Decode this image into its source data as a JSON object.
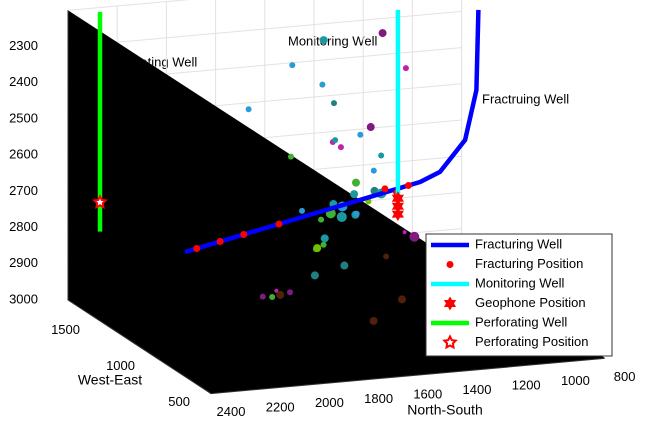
{
  "chart_data": {
    "type": "scatter3d",
    "annotations": [
      "Perforating Well",
      "Monitoring Well",
      "Fractruing Well"
    ],
    "xlabel": "North-South",
    "xlim": [
      800,
      2400
    ],
    "xticks": [
      800,
      1000,
      1200,
      1400,
      1600,
      1800,
      2000,
      2200,
      2400
    ],
    "ylabel": "West-East",
    "ylim": [
      400,
      1700
    ],
    "yticks": [
      500,
      1000,
      1500
    ],
    "zlim": [
      2200,
      3000
    ],
    "zticks": [
      2300,
      2400,
      2500,
      2600,
      2700,
      2800,
      2900,
      3000
    ],
    "z_reversed": true,
    "grid": true,
    "legend": "lower right",
    "events": {
      "x": [
        1500,
        1450,
        1600,
        1550,
        1400,
        1650,
        1350,
        1700,
        1520,
        1480,
        1580,
        1420,
        1620,
        1380,
        1560,
        1460,
        1540,
        1500,
        1300,
        1750,
        1900,
        2000,
        2100,
        1850,
        1950,
        1500,
        1450,
        1600,
        1400,
        1550,
        1650,
        1350,
        1480,
        1520,
        1700,
        1300,
        1250,
        1800,
        1560,
        1440,
        1600,
        1500,
        1380,
        1620,
        1470
      ],
      "y": [
        1100,
        1200,
        1000,
        1300,
        1150,
        1250,
        900,
        1100,
        1050,
        1350,
        1200,
        1000,
        950,
        1250,
        1150,
        1050,
        1300,
        1200,
        1100,
        900,
        800,
        700,
        600,
        1000,
        850,
        1400,
        1500,
        1450,
        900,
        1000,
        1350,
        1200,
        1100,
        1250,
        1000,
        1300,
        1200,
        1400,
        800,
        1000,
        1100,
        1300,
        1500,
        1200,
        1000
      ],
      "z": [
        2700,
        2720,
        2680,
        2750,
        2650,
        2710,
        2730,
        2690,
        2600,
        2550,
        2780,
        2800,
        2640,
        2700,
        2500,
        2450,
        2820,
        2860,
        2760,
        2740,
        2830,
        2800,
        2790,
        2880,
        2850,
        2400,
        2300,
        2350,
        2900,
        2620,
        2580,
        2670,
        2480,
        2420,
        2760,
        2250,
        2330,
        2450,
        2930,
        2520,
        2690,
        2710,
        2600,
        2880,
        2560
      ],
      "sizes": [
        4,
        3,
        5,
        3,
        4,
        3,
        5,
        2,
        4,
        3,
        4,
        3,
        5,
        3,
        3,
        4,
        3,
        4,
        2,
        3,
        3,
        2,
        3,
        4,
        3,
        3,
        4,
        3,
        4,
        4,
        3,
        5,
        3,
        3,
        4,
        4,
        3,
        3,
        4,
        3,
        5,
        4,
        3,
        4,
        3
      ],
      "colors": [
        "#1a9aa0",
        "#2a9ad8",
        "#1a9aa0",
        "#40b030",
        "#208080",
        "#2a9ad8",
        "#801a80",
        "#1a9aa0",
        "#40b030",
        "#c020b0",
        "#1a9aa0",
        "#50200a",
        "#2a9ad8",
        "#70c000",
        "#1a9aa0",
        "#801a80",
        "#40b030",
        "#208080",
        "#c020b0",
        "#1a9aa0",
        "#801a80",
        "#c020b0",
        "#801a80",
        "#50200a",
        "#40b030",
        "#2a9ad8",
        "#1a9aa0",
        "#2a9ad8",
        "#50200a",
        "#1a9aa0",
        "#40b030",
        "#1a9aa0",
        "#2a9ad8",
        "#208080",
        "#70c000",
        "#801a80",
        "#c020b0",
        "#2a9ad8",
        "#50200a",
        "#1a9aa0",
        "#40b030",
        "#1a9aa0",
        "#c020b0",
        "#208080",
        "#2a9ad8"
      ]
    },
    "series": [
      {
        "name": "Fracturing Well",
        "color": "#0000ff",
        "x": [
          2194,
          971,
          890,
          788,
          742,
          734
        ],
        "y": [
          1097,
          1695,
          1695,
          1695,
          1695,
          1695
        ],
        "z": [
          2760,
          2760,
          2737,
          2655,
          2520,
          2299
        ]
      },
      {
        "name": "Fracturing Position",
        "color": "#ff0000",
        "marker": "circle",
        "x": [
          2133,
          2011,
          1888,
          1705,
          1154,
          1093,
          1032
        ],
        "y": [
          1127,
          1187,
          1247,
          1336,
          1605,
          1635,
          1665
        ],
        "z": [
          2760,
          2760,
          2760,
          2760,
          2750,
          2770,
          2760
        ]
      },
      {
        "name": "Monitoring Well",
        "color": "#00ffff",
        "x": [
          1372,
          1372
        ],
        "y": [
          1000,
          1000
        ],
        "z": [
          2675,
          2122
        ]
      },
      {
        "name": "Geophone Position",
        "color": "#ff0000",
        "marker": "hexagram",
        "x": [
          1372,
          1372,
          1372
        ],
        "y": [
          1000,
          1000,
          1000
        ],
        "z": [
          2642,
          2664,
          2686
        ]
      },
      {
        "name": "Perforating Well",
        "color": "#00ff00",
        "x": [
          2270,
          2270
        ],
        "y": [
          1700,
          1700
        ],
        "z": [
          2819,
          2212
        ]
      },
      {
        "name": "Perforating Position",
        "color": "#ff0000",
        "marker": "pentagram",
        "x": [
          2270
        ],
        "y": [
          1700
        ],
        "z": [
          2738
        ]
      }
    ]
  }
}
